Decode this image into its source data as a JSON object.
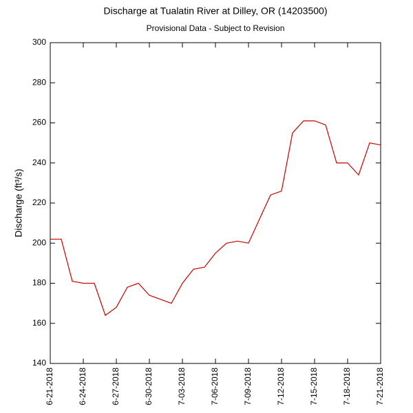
{
  "chart_data": {
    "type": "line",
    "title": "Discharge at Tualatin River at Dilley, OR (14203500)",
    "subtitle": "Provisional Data - Subject to Revision",
    "y_label": "Discharge (ft³/s)",
    "x": [
      "2018-06-21",
      "2018-06-22",
      "2018-06-23",
      "2018-06-24",
      "2018-06-25",
      "2018-06-26",
      "2018-06-27",
      "2018-06-28",
      "2018-06-29",
      "2018-06-30",
      "2018-07-01",
      "2018-07-02",
      "2018-07-03",
      "2018-07-04",
      "2018-07-05",
      "2018-07-06",
      "2018-07-07",
      "2018-07-08",
      "2018-07-09",
      "2018-07-10",
      "2018-07-11",
      "2018-07-12",
      "2018-07-13",
      "2018-07-14",
      "2018-07-15",
      "2018-07-16",
      "2018-07-17",
      "2018-07-18",
      "2018-07-19",
      "2018-07-20",
      "2018-07-21"
    ],
    "series": [
      {
        "name": "Discharge",
        "color": "#cc0000",
        "values": [
          202,
          202,
          181,
          180,
          180,
          164,
          168,
          178,
          180,
          174,
          172,
          170,
          180,
          187,
          188,
          195,
          200,
          201,
          200,
          212,
          224,
          226,
          255,
          261,
          261,
          259,
          240,
          240,
          234,
          250,
          249
        ]
      }
    ],
    "xlim": [
      "2018-06-21",
      "2018-07-21"
    ],
    "xticks": [
      {
        "value": "2018-06-21",
        "label": "6-21-2018"
      },
      {
        "value": "2018-06-24",
        "label": "6-24-2018"
      },
      {
        "value": "2018-06-27",
        "label": "6-27-2018"
      },
      {
        "value": "2018-06-30",
        "label": "6-30-2018"
      },
      {
        "value": "2018-07-03",
        "label": "7-03-2018"
      },
      {
        "value": "2018-07-06",
        "label": "7-06-2018"
      },
      {
        "value": "2018-07-09",
        "label": "7-09-2018"
      },
      {
        "value": "2018-07-12",
        "label": "7-12-2018"
      },
      {
        "value": "2018-07-15",
        "label": "7-15-2018"
      },
      {
        "value": "2018-07-18",
        "label": "7-18-2018"
      },
      {
        "value": "2018-07-21",
        "label": "7-21-2018"
      }
    ],
    "ylim": [
      140,
      300
    ],
    "yticks": [
      140,
      160,
      180,
      200,
      220,
      240,
      260,
      280,
      300
    ],
    "grid": false
  }
}
